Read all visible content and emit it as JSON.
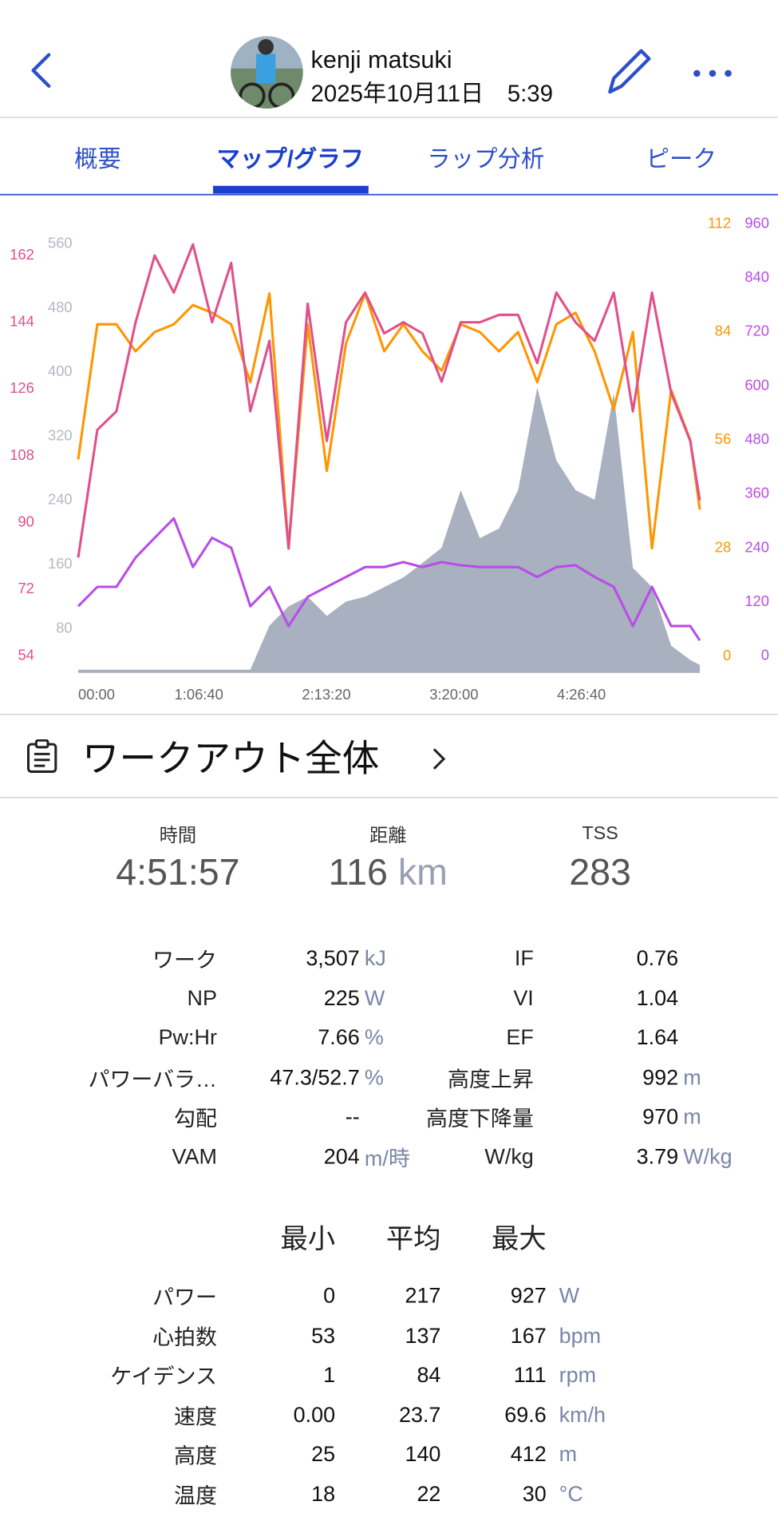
{
  "header": {
    "name": "kenji matsuki",
    "date": "2025年10月11日　5:39"
  },
  "tabs": {
    "items": [
      "概要",
      "マップ/グラフ",
      "ラップ分析",
      "ピーク"
    ],
    "active": 1
  },
  "chart_data": {
    "type": "line",
    "x": [
      0,
      600,
      1200,
      1800,
      2400,
      3000,
      3600,
      4200,
      4800,
      5400,
      6000,
      6600,
      7200,
      7800,
      8400,
      9000,
      9600,
      10200,
      10800,
      11400,
      12000,
      12600,
      13200,
      13800,
      14400,
      15000,
      15600,
      16200,
      16800,
      17400,
      18000,
      18600,
      19200,
      19500
    ],
    "xlim": [
      0,
      19500
    ],
    "xticks": [
      {
        "value": 0,
        "label": "00:00"
      },
      {
        "value": 4000,
        "label": "1:06:40"
      },
      {
        "value": 8000,
        "label": "2:13:20"
      },
      {
        "value": 12000,
        "label": "3:20:00"
      },
      {
        "value": 16000,
        "label": "4:26:40"
      }
    ],
    "axes": {
      "heart_rate": {
        "lim": [
          49.5,
          170.5
        ],
        "ticks": [
          54,
          72,
          90,
          108,
          126,
          144,
          162
        ],
        "color": "#e0508a"
      },
      "elevation": {
        "lim": [
          25,
          585
        ],
        "ticks": [
          80,
          160,
          240,
          320,
          400,
          480,
          560
        ],
        "color": "#b3b8c4"
      },
      "cadence": {
        "lim": [
          -4.3,
          112
        ],
        "ticks": [
          0,
          28,
          56,
          84,
          112
        ],
        "color": "#ff9500"
      },
      "power": {
        "lim": [
          -37,
          960
        ],
        "ticks": [
          0,
          120,
          240,
          360,
          480,
          600,
          720,
          840,
          960
        ],
        "color": "#b84ce8"
      }
    },
    "series": [
      {
        "axis": "elevation",
        "kind": "area",
        "color": "#a9b0c0",
        "values": [
          29,
          29,
          29,
          29,
          29,
          29,
          29,
          29,
          29,
          29,
          84,
          108,
          120,
          96,
          114,
          120,
          132,
          144,
          162,
          181,
          253,
          193,
          205,
          253,
          381,
          290,
          253,
          241,
          374,
          156,
          132,
          59,
          41,
          35
        ]
      },
      {
        "axis": "power",
        "kind": "line",
        "color": "#b84ce8",
        "values": [
          111,
          154,
          154,
          219,
          263,
          306,
          198,
          263,
          241,
          111,
          154,
          67,
          132,
          154,
          176,
          198,
          198,
          209,
          198,
          209,
          202,
          198,
          198,
          198,
          176,
          198,
          202,
          176,
          154,
          67,
          154,
          67,
          67,
          35
        ]
      },
      {
        "axis": "cadence",
        "kind": "line",
        "color": "#ff9500",
        "values": [
          51,
          86,
          86,
          79,
          84,
          86,
          91,
          89,
          86,
          71,
          94,
          28,
          86,
          48,
          81,
          94,
          79,
          86,
          79,
          74,
          86,
          84,
          79,
          84,
          71,
          86,
          89,
          79,
          64,
          84,
          28,
          69,
          56,
          38
        ]
      },
      {
        "axis": "heart_rate",
        "kind": "line",
        "color": "#e0508a",
        "values": [
          80.6,
          115,
          120,
          144,
          162,
          152,
          165,
          144,
          160,
          120,
          139,
          83,
          149,
          112,
          144,
          152,
          141,
          144,
          141,
          128,
          144,
          144,
          146,
          146,
          133,
          152,
          144,
          139,
          152,
          120,
          152,
          125,
          112,
          96
        ]
      }
    ]
  },
  "workout": {
    "title": "ワークアウト全体"
  },
  "summary": [
    {
      "label": "時間",
      "value": "4:51:57"
    },
    {
      "label": "距離",
      "value": "116",
      "unit": "km"
    },
    {
      "label": "TSS",
      "value": "283"
    }
  ],
  "metrics": {
    "left": [
      {
        "label": "ワーク",
        "value": "3,507",
        "unit": "kJ"
      },
      {
        "label": "NP",
        "value": "225",
        "unit": "W"
      },
      {
        "label": "Pw:Hr",
        "value": "7.66",
        "unit": "%"
      },
      {
        "label": "パワーバラ…",
        "value": "47.3/52.7",
        "unit": "%"
      },
      {
        "label": "勾配",
        "value": "--"
      },
      {
        "label": "VAM",
        "value": "204",
        "unit": "m/時"
      }
    ],
    "right": [
      {
        "label": "IF",
        "value": "0.76"
      },
      {
        "label": "VI",
        "value": "1.04"
      },
      {
        "label": "EF",
        "value": "1.64"
      },
      {
        "label": "高度上昇",
        "value": "992",
        "unit": "m"
      },
      {
        "label": "高度下降量",
        "value": "970",
        "unit": "m"
      },
      {
        "label": "W/kg",
        "value": "3.79",
        "unit": "W/kg"
      }
    ]
  },
  "stats": {
    "headers": [
      "最小",
      "平均",
      "最大"
    ],
    "rows": [
      {
        "label": "パワー",
        "values": [
          "0",
          "217",
          "927"
        ],
        "unit": "W"
      },
      {
        "label": "心拍数",
        "values": [
          "53",
          "137",
          "167"
        ],
        "unit": "bpm"
      },
      {
        "label": "ケイデンス",
        "values": [
          "1",
          "84",
          "111"
        ],
        "unit": "rpm"
      },
      {
        "label": "速度",
        "values": [
          "0.00",
          "23.7",
          "69.6"
        ],
        "unit": "km/h"
      },
      {
        "label": "高度",
        "values": [
          "25",
          "140",
          "412"
        ],
        "unit": "m"
      },
      {
        "label": "温度",
        "values": [
          "18",
          "22",
          "30"
        ],
        "unit": "°C"
      }
    ]
  }
}
